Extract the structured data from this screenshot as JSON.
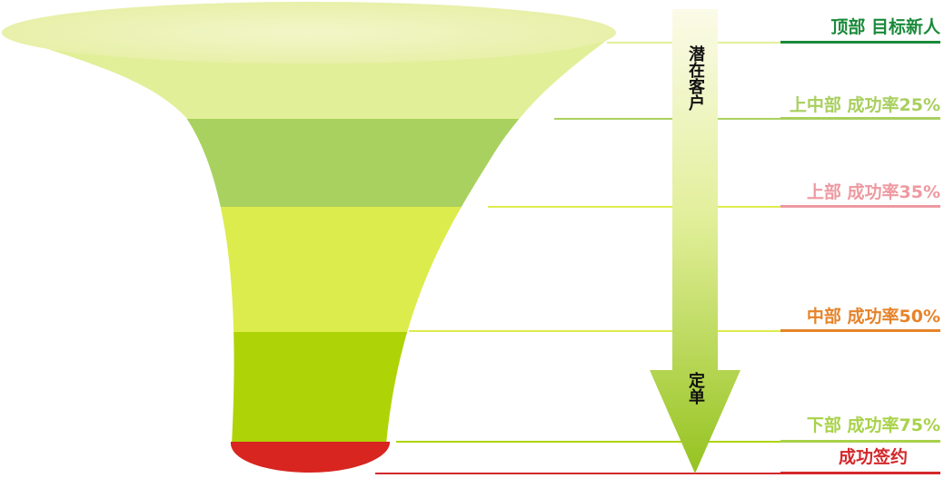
{
  "arrow": {
    "top_label": "潜在客户",
    "bottom_label": "定单"
  },
  "stages": [
    {
      "label": "顶部  目标新人",
      "color": "#1a8a3a",
      "fill": "#e2ef99"
    },
    {
      "label": "上中部 成功率25%",
      "color": "#a8cf5e",
      "fill": "#a9d15f"
    },
    {
      "label": "上部 成功率35%",
      "color": "#ee99a0",
      "fill": "#dcec4c"
    },
    {
      "label": "中部 成功率50%",
      "color": "#e6832a",
      "fill": "#aed407"
    },
    {
      "label": "下部 成功率75%",
      "color": "#a8d24a",
      "fill": "#aed407"
    },
    {
      "label": "成功签约",
      "color": "#d3282b",
      "fill": "#d8251f"
    }
  ]
}
